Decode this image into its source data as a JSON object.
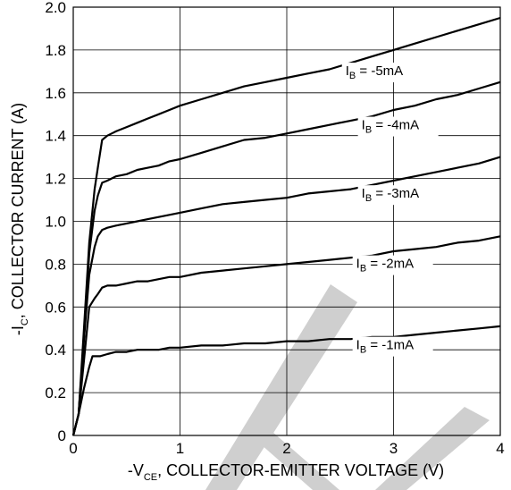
{
  "chart_data": {
    "type": "line",
    "xlabel": {
      "pre": "-V",
      "sub": "CE",
      "post": ", COLLECTOR-EMITTER VOLTAGE (V)"
    },
    "ylabel": {
      "pre": "-I",
      "sub": "C",
      "post": ", COLLECTOR CURRENT (A)"
    },
    "xlim": [
      0,
      4
    ],
    "ylim": [
      0,
      2.0
    ],
    "xticks": [
      "0",
      "1",
      "2",
      "3",
      "4"
    ],
    "yticks": [
      "0",
      "0.2",
      "0.4",
      "0.6",
      "0.8",
      "1.0",
      "1.2",
      "1.4",
      "1.6",
      "1.8",
      "2.0"
    ],
    "grid": "on",
    "series": [
      {
        "name": {
          "pre": "I",
          "sub": "B",
          "post": " = -5mA"
        },
        "x": [
          0,
          0.05,
          0.1,
          0.15,
          0.2,
          0.23,
          0.27,
          0.32,
          0.4,
          0.5,
          0.6,
          0.7,
          0.8,
          0.9,
          1.0,
          1.2,
          1.4,
          1.6,
          1.8,
          2.0,
          2.2,
          2.4,
          2.6,
          2.8,
          3.0,
          3.2,
          3.4,
          3.6,
          3.8,
          4.0
        ],
        "y": [
          0,
          0.1,
          0.5,
          0.9,
          1.15,
          1.25,
          1.38,
          1.4,
          1.42,
          1.44,
          1.46,
          1.48,
          1.5,
          1.52,
          1.54,
          1.57,
          1.6,
          1.63,
          1.65,
          1.67,
          1.69,
          1.71,
          1.74,
          1.77,
          1.8,
          1.83,
          1.86,
          1.89,
          1.92,
          1.95
        ]
      },
      {
        "name": {
          "pre": "I",
          "sub": "B",
          "post": " = -4mA"
        },
        "x": [
          0,
          0.05,
          0.1,
          0.15,
          0.2,
          0.23,
          0.27,
          0.32,
          0.4,
          0.5,
          0.6,
          0.7,
          0.8,
          0.9,
          1.0,
          1.2,
          1.4,
          1.6,
          1.8,
          2.0,
          2.2,
          2.4,
          2.6,
          2.8,
          3.0,
          3.2,
          3.4,
          3.6,
          3.8,
          4.0
        ],
        "y": [
          0,
          0.1,
          0.45,
          0.85,
          1.05,
          1.12,
          1.18,
          1.19,
          1.21,
          1.22,
          1.24,
          1.25,
          1.26,
          1.28,
          1.29,
          1.32,
          1.35,
          1.38,
          1.39,
          1.41,
          1.43,
          1.45,
          1.47,
          1.49,
          1.52,
          1.54,
          1.57,
          1.59,
          1.62,
          1.65
        ]
      },
      {
        "name": {
          "pre": "I",
          "sub": "B",
          "post": " = -3mA"
        },
        "x": [
          0,
          0.05,
          0.1,
          0.15,
          0.2,
          0.23,
          0.27,
          0.32,
          0.4,
          0.5,
          0.6,
          0.7,
          0.8,
          0.9,
          1.0,
          1.2,
          1.4,
          1.6,
          1.8,
          2.0,
          2.2,
          2.4,
          2.6,
          2.8,
          3.0,
          3.2,
          3.4,
          3.6,
          3.8,
          4.0
        ],
        "y": [
          0,
          0.1,
          0.45,
          0.75,
          0.88,
          0.93,
          0.96,
          0.97,
          0.98,
          0.99,
          1.0,
          1.01,
          1.02,
          1.03,
          1.04,
          1.06,
          1.08,
          1.09,
          1.1,
          1.11,
          1.13,
          1.14,
          1.15,
          1.17,
          1.19,
          1.21,
          1.23,
          1.25,
          1.27,
          1.3
        ]
      },
      {
        "name": {
          "pre": "I",
          "sub": "B",
          "post": " = -2mA"
        },
        "x": [
          0,
          0.05,
          0.1,
          0.15,
          0.2,
          0.23,
          0.27,
          0.32,
          0.4,
          0.5,
          0.6,
          0.7,
          0.8,
          0.9,
          1.0,
          1.2,
          1.4,
          1.6,
          1.8,
          2.0,
          2.2,
          2.4,
          2.6,
          2.8,
          3.0,
          3.2,
          3.4,
          3.6,
          3.8,
          4.0
        ],
        "y": [
          0,
          0.1,
          0.35,
          0.6,
          0.64,
          0.66,
          0.69,
          0.7,
          0.7,
          0.71,
          0.72,
          0.72,
          0.73,
          0.74,
          0.74,
          0.76,
          0.77,
          0.78,
          0.79,
          0.8,
          0.81,
          0.82,
          0.83,
          0.84,
          0.86,
          0.87,
          0.88,
          0.9,
          0.91,
          0.93
        ]
      },
      {
        "name": {
          "pre": "I",
          "sub": "B",
          "post": " = -1mA"
        },
        "x": [
          0,
          0.05,
          0.1,
          0.15,
          0.18,
          0.22,
          0.25,
          0.32,
          0.4,
          0.5,
          0.6,
          0.7,
          0.8,
          0.9,
          1.0,
          1.2,
          1.4,
          1.6,
          1.8,
          2.0,
          2.2,
          2.4,
          2.6,
          2.8,
          3.0,
          3.2,
          3.4,
          3.6,
          3.8,
          4.0
        ],
        "y": [
          0,
          0.1,
          0.22,
          0.32,
          0.37,
          0.37,
          0.37,
          0.38,
          0.39,
          0.39,
          0.4,
          0.4,
          0.4,
          0.41,
          0.41,
          0.42,
          0.42,
          0.43,
          0.43,
          0.44,
          0.44,
          0.45,
          0.45,
          0.46,
          0.46,
          0.47,
          0.48,
          0.49,
          0.5,
          0.51
        ]
      }
    ],
    "label_anchor_x": [
      2.55,
      2.7,
      2.7,
      2.65,
      2.65
    ]
  }
}
